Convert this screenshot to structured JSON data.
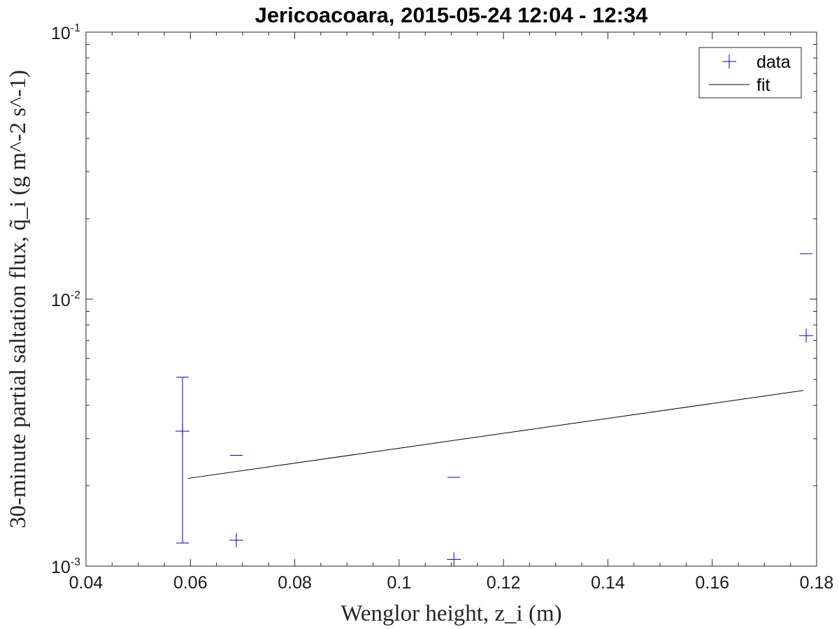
{
  "chart_data": {
    "type": "scatter",
    "title": "Jericoacoara, 2015-05-24 12:04 - 12:34",
    "xlabel": "Wenglor height, z_i (m)",
    "ylabel": "30-minute partial saltation flux, q̃_i (g m^-2 s^-1)",
    "xlim": [
      0.04,
      0.18
    ],
    "ylim": [
      0.001,
      0.1
    ],
    "yscale": "log",
    "grid": false,
    "legend_position": "top-right",
    "x_ticks": [
      "0.04",
      "0.06",
      "0.08",
      "0.1",
      "0.12",
      "0.14",
      "0.16",
      "0.18"
    ],
    "y_ticks": [
      {
        "base": "10",
        "exp": "-3"
      },
      {
        "base": "10",
        "exp": "-2"
      },
      {
        "base": "10",
        "exp": "-1"
      }
    ],
    "series": [
      {
        "name": "data",
        "color": "#0000cc",
        "marker": "plus",
        "points": [
          {
            "x": 0.0585,
            "y": 0.0032,
            "ylow": 0.00122,
            "yhigh": 0.0051
          },
          {
            "x": 0.0688,
            "y": 0.00125,
            "ylow": null,
            "yhigh": 0.0026
          },
          {
            "x": 0.1105,
            "y": 0.00106,
            "ylow": null,
            "yhigh": 0.00215
          },
          {
            "x": 0.178,
            "y": 0.0073,
            "ylow": null,
            "yhigh": 0.0148
          }
        ]
      },
      {
        "name": "fit",
        "color": "#000000",
        "marker": "line",
        "x": [
          0.0595,
          0.1775
        ],
        "y": [
          0.00213,
          0.00455
        ]
      }
    ]
  }
}
